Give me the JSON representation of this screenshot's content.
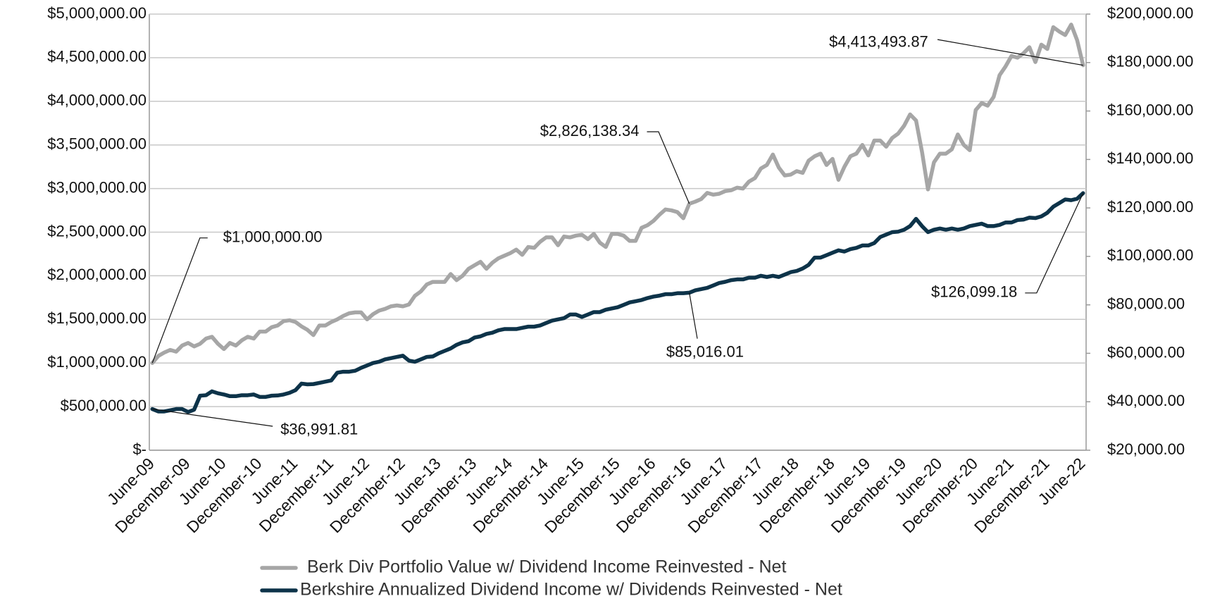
{
  "chart_data": {
    "type": "line",
    "categories": [
      "June-09",
      null,
      null,
      null,
      null,
      null,
      "December-09",
      null,
      null,
      null,
      null,
      null,
      "June-10",
      null,
      null,
      null,
      null,
      null,
      "December-10",
      null,
      null,
      null,
      null,
      null,
      "June-11",
      null,
      null,
      null,
      null,
      null,
      "December-11",
      null,
      null,
      null,
      null,
      null,
      "June-12",
      null,
      null,
      null,
      null,
      null,
      "December-12",
      null,
      null,
      null,
      null,
      null,
      "June-13",
      null,
      null,
      null,
      null,
      null,
      "December-13",
      null,
      null,
      null,
      null,
      null,
      "June-14",
      null,
      null,
      null,
      null,
      null,
      "December-14",
      null,
      null,
      null,
      null,
      null,
      "June-15",
      null,
      null,
      null,
      null,
      null,
      "December-15",
      null,
      null,
      null,
      null,
      null,
      "June-16",
      null,
      null,
      null,
      null,
      null,
      "December-16",
      null,
      null,
      null,
      null,
      null,
      "June-17",
      null,
      null,
      null,
      null,
      null,
      "December-17",
      null,
      null,
      null,
      null,
      null,
      "June-18",
      null,
      null,
      null,
      null,
      null,
      "December-18",
      null,
      null,
      null,
      null,
      null,
      "June-19",
      null,
      null,
      null,
      null,
      null,
      "December-19",
      null,
      null,
      null,
      null,
      null,
      "June-20",
      null,
      null,
      null,
      null,
      null,
      "December-20",
      null,
      null,
      null,
      null,
      null,
      "June-21",
      null,
      null,
      null,
      null,
      null,
      "December-21",
      null,
      null,
      null,
      null,
      null,
      "June-22"
    ],
    "series": [
      {
        "name": "Berk Div Portfolio Value w/ Dividend Income Reinvested - Net",
        "color": "#a6a6a6",
        "axis": "y",
        "values": [
          1000000,
          1080000,
          1120000,
          1150000,
          1130000,
          1200000,
          1230000,
          1190000,
          1220000,
          1280000,
          1300000,
          1220000,
          1160000,
          1230000,
          1200000,
          1260000,
          1300000,
          1280000,
          1360000,
          1360000,
          1410000,
          1430000,
          1480000,
          1490000,
          1470000,
          1420000,
          1380000,
          1320000,
          1430000,
          1430000,
          1470000,
          1500000,
          1540000,
          1570000,
          1580000,
          1580000,
          1500000,
          1560000,
          1600000,
          1620000,
          1650000,
          1660000,
          1650000,
          1670000,
          1770000,
          1820000,
          1900000,
          1930000,
          1930000,
          1930000,
          2020000,
          1950000,
          2000000,
          2080000,
          2120000,
          2160000,
          2080000,
          2150000,
          2200000,
          2230000,
          2260000,
          2300000,
          2240000,
          2330000,
          2320000,
          2390000,
          2440000,
          2440000,
          2350000,
          2450000,
          2440000,
          2460000,
          2470000,
          2420000,
          2480000,
          2380000,
          2330000,
          2480000,
          2480000,
          2460000,
          2400000,
          2400000,
          2550000,
          2580000,
          2630000,
          2700000,
          2760000,
          2750000,
          2730000,
          2660000,
          2826138.34,
          2850000,
          2880000,
          2950000,
          2930000,
          2940000,
          2970000,
          2980000,
          3010000,
          3000000,
          3080000,
          3120000,
          3230000,
          3270000,
          3390000,
          3240000,
          3150000,
          3160000,
          3200000,
          3180000,
          3320000,
          3370000,
          3400000,
          3270000,
          3340000,
          3100000,
          3250000,
          3370000,
          3400000,
          3500000,
          3380000,
          3550000,
          3550000,
          3480000,
          3580000,
          3630000,
          3720000,
          3850000,
          3780000,
          3420000,
          2990000,
          3300000,
          3400000,
          3400000,
          3450000,
          3620000,
          3500000,
          3440000,
          3900000,
          3980000,
          3950000,
          4050000,
          4300000,
          4400000,
          4520000,
          4500000,
          4550000,
          4620000,
          4450000,
          4650000,
          4600000,
          4850000,
          4800000,
          4760000,
          4880000,
          4700000,
          4413493.87
        ],
        "value_labels": [
          "$1,000,000.00",
          null,
          null,
          null,
          null,
          null,
          null,
          null,
          null,
          null,
          null,
          null,
          null,
          null,
          null,
          null,
          null,
          null,
          null,
          null,
          null,
          null,
          null,
          null,
          null,
          null,
          null,
          null,
          null,
          null,
          null,
          null,
          null,
          null,
          null,
          null,
          null,
          null,
          null,
          null,
          null,
          null,
          null,
          null,
          null,
          null,
          null,
          null,
          null,
          null,
          null,
          null,
          null,
          null,
          null,
          null,
          null,
          null,
          null,
          null,
          null,
          null,
          null,
          null,
          null,
          null,
          null,
          null,
          null,
          null,
          null,
          null,
          null,
          null,
          null,
          null,
          null,
          null,
          null,
          null,
          null,
          null,
          null,
          null,
          null,
          null,
          null,
          null,
          null,
          null,
          "$2,826,138.34",
          null,
          null,
          null,
          null,
          null,
          null,
          null,
          null,
          null,
          null,
          null,
          null,
          null,
          null,
          null,
          null,
          null,
          null,
          null,
          null,
          null,
          null,
          null,
          null,
          null,
          null,
          null,
          null,
          null,
          null,
          null,
          null,
          null,
          null,
          null,
          null,
          null,
          null,
          null,
          null,
          null,
          null,
          null,
          null,
          null,
          null,
          null,
          null,
          null,
          null,
          null,
          null,
          null,
          null,
          null,
          null,
          null,
          null,
          null,
          null,
          null,
          null,
          null,
          null,
          null,
          "$4,413,493.87"
        ]
      },
      {
        "name": "Berkshire Annualized Dividend Income w/ Dividends Reinvested - Net",
        "color": "#0d3349",
        "axis": "y2",
        "values": [
          36991.81,
          36000,
          36000,
          36500,
          37000,
          37000,
          35800,
          36700,
          42500,
          42700,
          44300,
          43500,
          43000,
          42300,
          42300,
          42700,
          42700,
          43000,
          42000,
          42000,
          42500,
          42600,
          43000,
          43700,
          44800,
          47500,
          47200,
          47300,
          47800,
          48300,
          48800,
          52000,
          52400,
          52400,
          52800,
          54000,
          55000,
          56000,
          56500,
          57500,
          58000,
          58500,
          59000,
          57000,
          56500,
          57500,
          58500,
          58700,
          60000,
          61000,
          62000,
          63500,
          64500,
          65000,
          66500,
          67000,
          68000,
          68500,
          69500,
          70000,
          70000,
          70000,
          70500,
          71000,
          71000,
          71500,
          72500,
          73500,
          74000,
          74500,
          76000,
          76000,
          75000,
          76000,
          77000,
          77000,
          78000,
          78500,
          79000,
          80000,
          81000,
          81500,
          82000,
          82800,
          83400,
          83800,
          84400,
          84400,
          84800,
          84800,
          85016.01,
          86000,
          86500,
          87000,
          88000,
          89000,
          89500,
          90200,
          90500,
          90500,
          91200,
          91200,
          92000,
          91500,
          92000,
          91500,
          92500,
          93500,
          94000,
          95000,
          96500,
          99500,
          99500,
          100500,
          101500,
          102500,
          102000,
          103000,
          103500,
          104500,
          104500,
          105500,
          108000,
          109000,
          110000,
          110200,
          111000,
          112500,
          115500,
          112500,
          110000,
          111000,
          111500,
          111000,
          111500,
          111000,
          111500,
          112500,
          113000,
          113500,
          112500,
          112500,
          113000,
          114000,
          114000,
          115000,
          115200,
          116000,
          115800,
          116500,
          118000,
          120500,
          122000,
          123500,
          123200,
          123800,
          126099.18
        ],
        "value_labels": [
          "$36,991.81",
          null,
          null,
          null,
          null,
          null,
          null,
          null,
          null,
          null,
          null,
          null,
          null,
          null,
          null,
          null,
          null,
          null,
          null,
          null,
          null,
          null,
          null,
          null,
          null,
          null,
          null,
          null,
          null,
          null,
          null,
          null,
          null,
          null,
          null,
          null,
          null,
          null,
          null,
          null,
          null,
          null,
          null,
          null,
          null,
          null,
          null,
          null,
          null,
          null,
          null,
          null,
          null,
          null,
          null,
          null,
          null,
          null,
          null,
          null,
          null,
          null,
          null,
          null,
          null,
          null,
          null,
          null,
          null,
          null,
          null,
          null,
          null,
          null,
          null,
          null,
          null,
          null,
          null,
          null,
          null,
          null,
          null,
          null,
          null,
          null,
          null,
          null,
          null,
          null,
          "$85,016.01",
          null,
          null,
          null,
          null,
          null,
          null,
          null,
          null,
          null,
          null,
          null,
          null,
          null,
          null,
          null,
          null,
          null,
          null,
          null,
          null,
          null,
          null,
          null,
          null,
          null,
          null,
          null,
          null,
          null,
          null,
          null,
          null,
          null,
          null,
          null,
          null,
          null,
          null,
          null,
          null,
          null,
          null,
          null,
          null,
          null,
          null,
          null,
          null,
          null,
          null,
          null,
          null,
          null,
          null,
          null,
          null,
          null,
          null,
          null,
          null,
          null,
          null,
          null,
          null,
          null,
          "$126,099.18"
        ]
      }
    ],
    "ylim": [
      0,
      5000000
    ],
    "yticks": [
      {
        "value": 0,
        "label": "$-"
      },
      {
        "value": 500000,
        "label": "$500,000.00"
      },
      {
        "value": 1000000,
        "label": "$1,000,000.00"
      },
      {
        "value": 1500000,
        "label": "$1,500,000.00"
      },
      {
        "value": 2000000,
        "label": "$2,000,000.00"
      },
      {
        "value": 2500000,
        "label": "$2,500,000.00"
      },
      {
        "value": 3000000,
        "label": "$3,000,000.00"
      },
      {
        "value": 3500000,
        "label": "$3,500,000.00"
      },
      {
        "value": 4000000,
        "label": "$4,000,000.00"
      },
      {
        "value": 4500000,
        "label": "$4,500,000.00"
      },
      {
        "value": 5000000,
        "label": "$5,000,000.00"
      }
    ],
    "y2lim": [
      20000,
      200000
    ],
    "y2ticks": [
      {
        "value": 20000,
        "label": "$20,000.00"
      },
      {
        "value": 40000,
        "label": "$40,000.00"
      },
      {
        "value": 60000,
        "label": "$60,000.00"
      },
      {
        "value": 80000,
        "label": "$80,000.00"
      },
      {
        "value": 100000,
        "label": "$100,000.00"
      },
      {
        "value": 120000,
        "label": "$120,000.00"
      },
      {
        "value": 140000,
        "label": "$140,000.00"
      },
      {
        "value": 160000,
        "label": "$160,000.00"
      },
      {
        "value": 180000,
        "label": "$180,000.00"
      },
      {
        "value": 200000,
        "label": "$200,000.00"
      }
    ],
    "grid": true,
    "legend": "bottom"
  }
}
